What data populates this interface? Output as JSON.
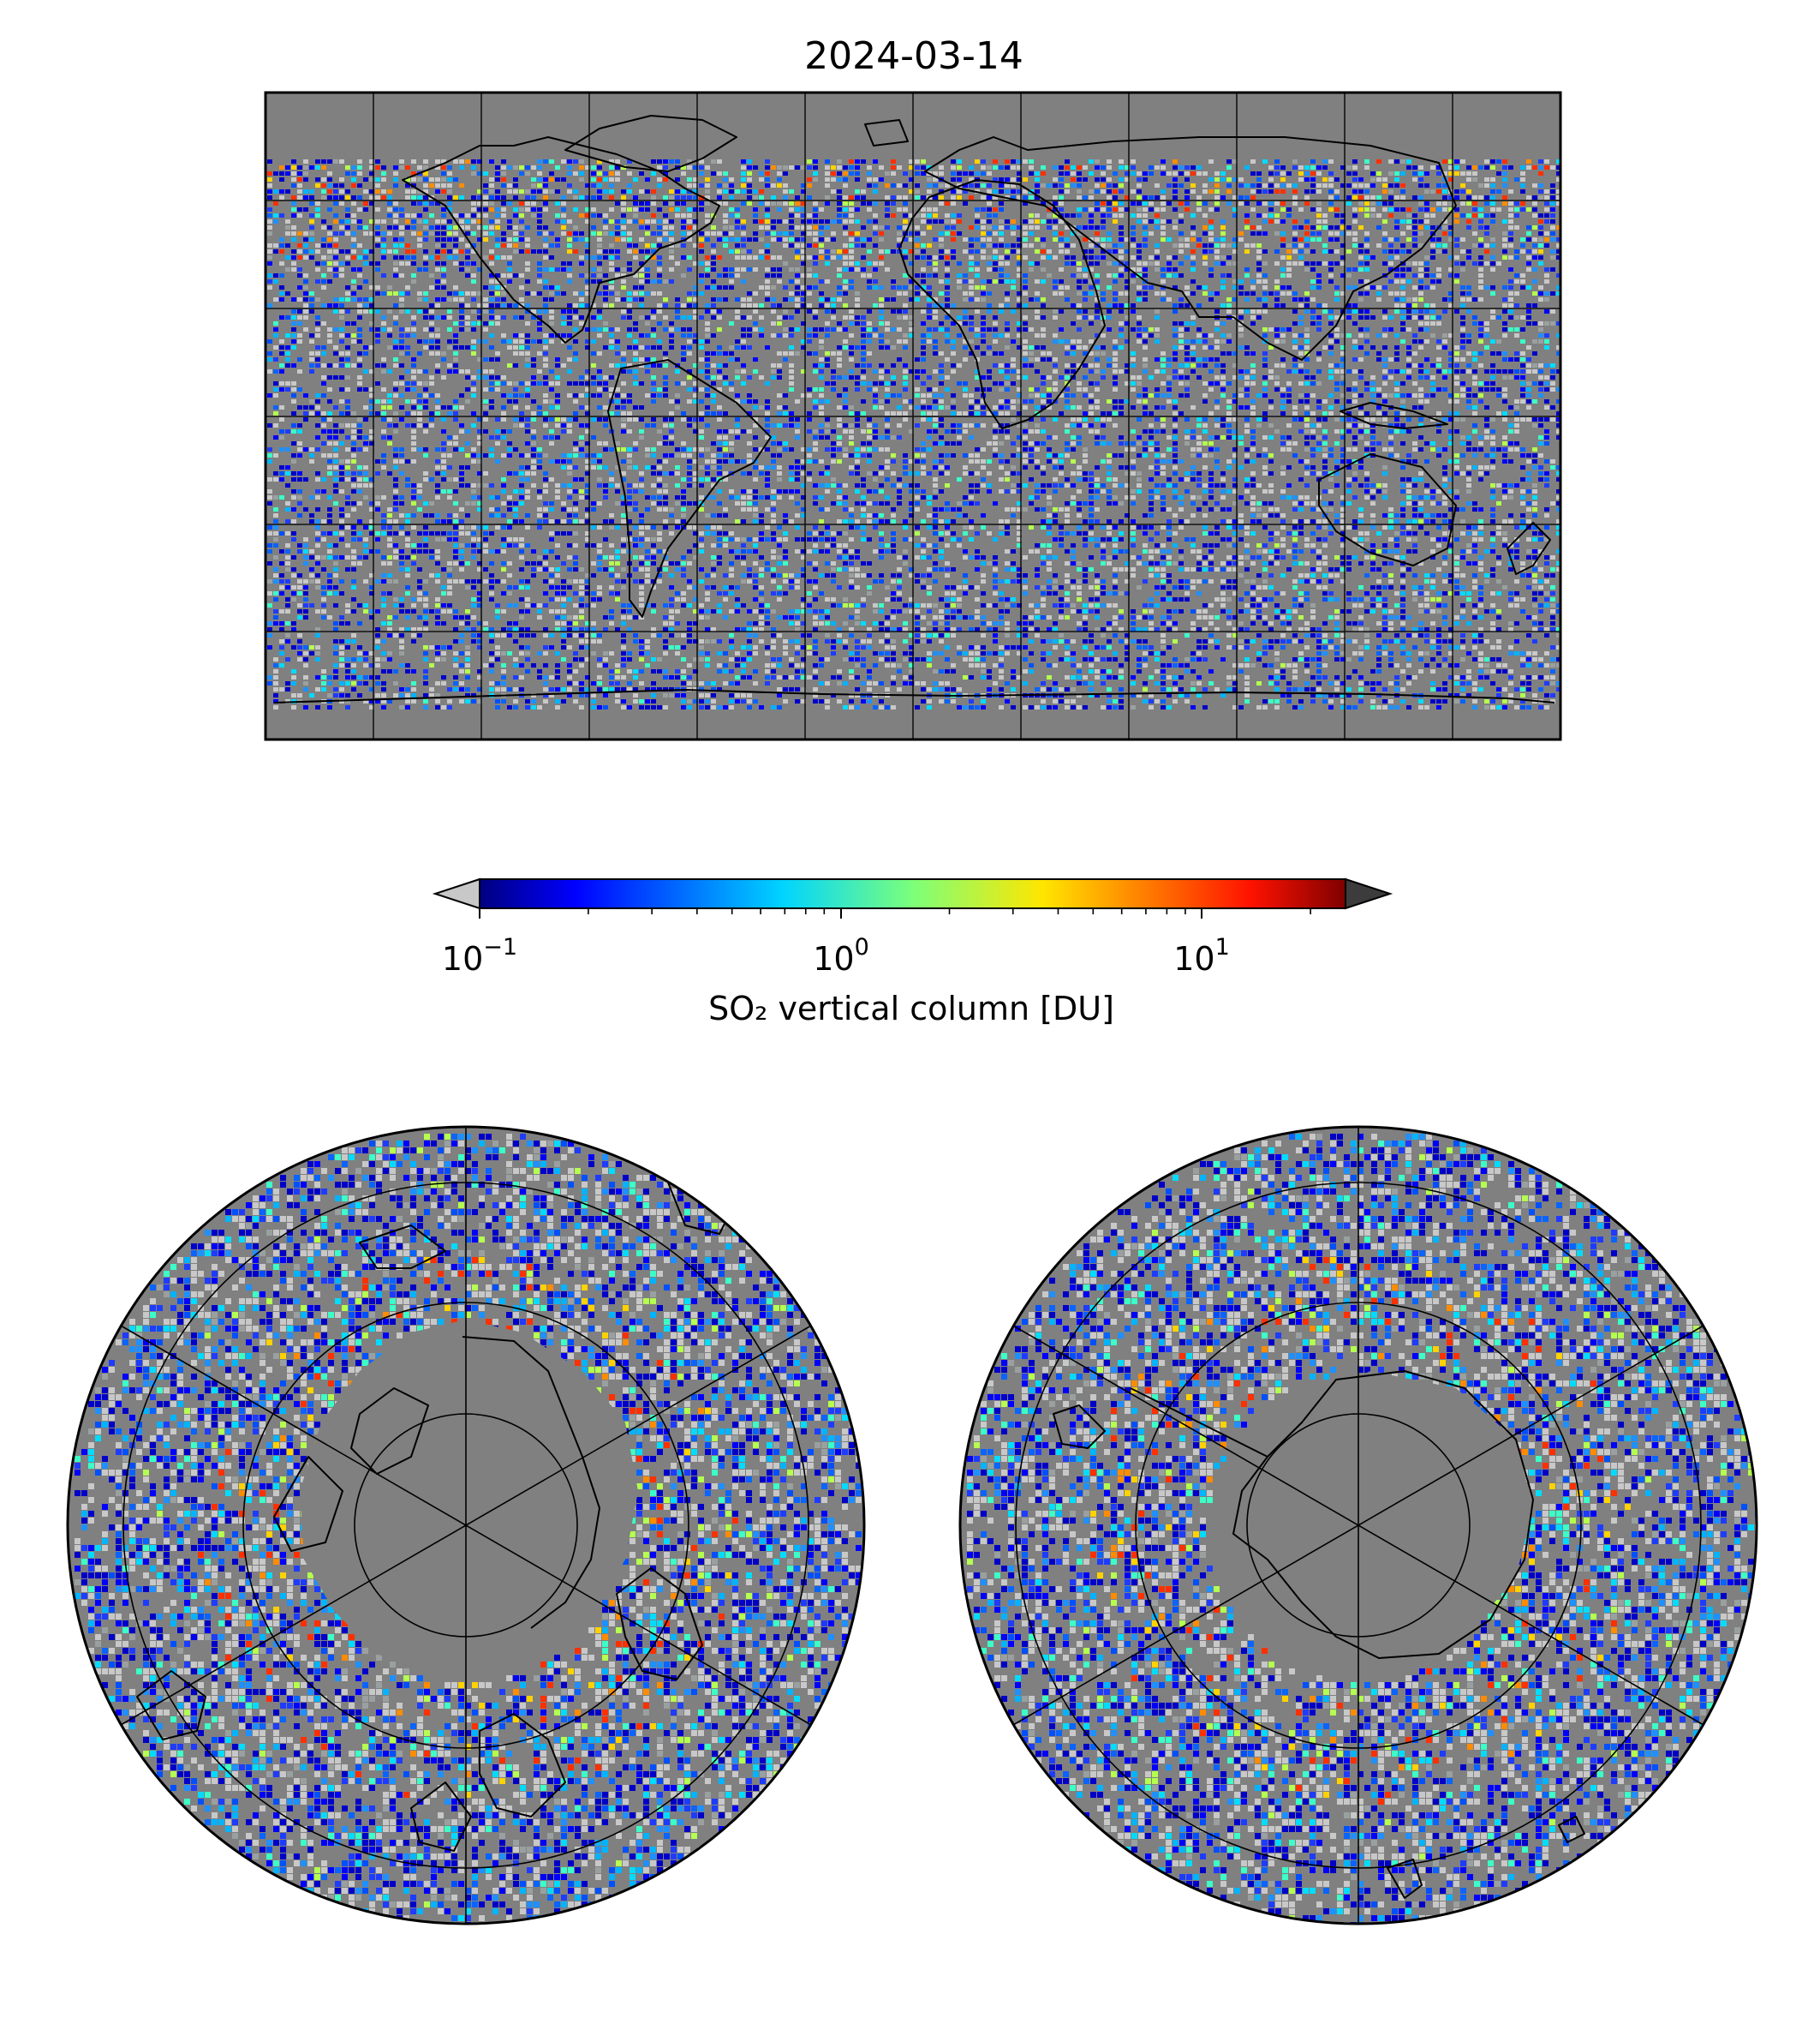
{
  "figure": {
    "title": "2024-03-14"
  },
  "colorbar": {
    "colormap": "jet",
    "scale": "log",
    "range": [
      0.1,
      25
    ],
    "extend": "both",
    "under_color": "#c8c8c8",
    "over_color": "#3c3c3c",
    "tick_labels": [
      {
        "base": "10",
        "exp": "−1",
        "value": 0.1
      },
      {
        "base": "10",
        "exp": "0",
        "value": 1
      },
      {
        "base": "10",
        "exp": "1",
        "value": 10
      }
    ],
    "label": "SO₂ vertical column [DU]"
  },
  "colors": {
    "no_data": "#808080",
    "coastline": "#000000",
    "gridline": "#000000"
  },
  "maps": [
    {
      "name": "global",
      "projection": "plate-carree",
      "gridlines_deg": 60
    },
    {
      "name": "north-polar",
      "projection": "north-polar-stereographic",
      "gridlines_deg": 60
    },
    {
      "name": "south-polar",
      "projection": "south-polar-stereographic",
      "gridlines_deg": 60
    }
  ]
}
